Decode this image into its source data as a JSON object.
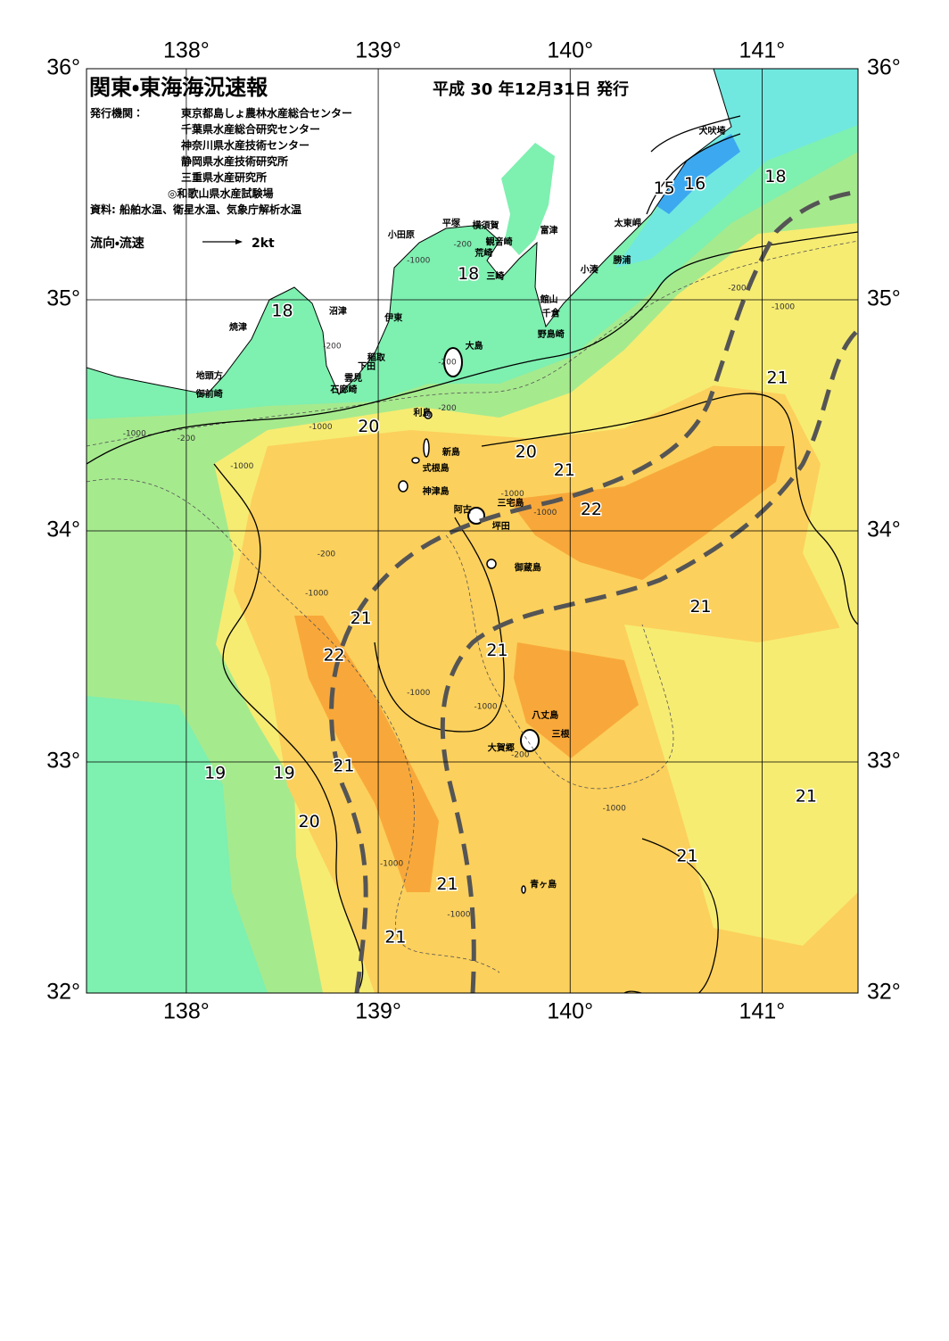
{
  "header": {
    "title": "関東・東海海況速報",
    "date": "平成 30 年12月31日 発行",
    "publisher_label": "発行機関：",
    "publishers": [
      "東京都島しょ農林水産総合センター",
      "千葉県水産総合研究センター",
      "神奈川県水産技術センター",
      "静岡県水産技術研究所",
      "三重県水産研究所",
      "◎和歌山県水産試験場"
    ],
    "source": "資料: 船舶水温、衛星水温、気象庁解析水温",
    "legend_label": "流向・流速",
    "legend_scale": "2kt"
  },
  "map": {
    "lonlim": [
      137.48,
      141.5
    ],
    "latlim": [
      32,
      36
    ],
    "lon_ticks": [
      {
        "value": 138,
        "label": "138°"
      },
      {
        "value": 139,
        "label": "139°"
      },
      {
        "value": 140,
        "label": "140°"
      },
      {
        "value": 141,
        "label": "141°"
      }
    ],
    "lat_ticks": [
      {
        "value": 32,
        "label": "32°"
      },
      {
        "value": 33,
        "label": "33°"
      },
      {
        "value": 34,
        "label": "34°"
      },
      {
        "value": 35,
        "label": "35°"
      },
      {
        "value": 36,
        "label": "36°"
      }
    ],
    "places": [
      {
        "name": "犬吠埼",
        "lon": 140.74,
        "lat": 35.73
      },
      {
        "name": "太東岬",
        "lon": 140.3,
        "lat": 35.33
      },
      {
        "name": "勝浦",
        "lon": 140.27,
        "lat": 35.17
      },
      {
        "name": "小湊",
        "lon": 140.1,
        "lat": 35.13
      },
      {
        "name": "館山",
        "lon": 139.89,
        "lat": 35.0
      },
      {
        "name": "千倉",
        "lon": 139.9,
        "lat": 34.94
      },
      {
        "name": "野島崎",
        "lon": 139.9,
        "lat": 34.85
      },
      {
        "name": "富津",
        "lon": 139.89,
        "lat": 35.3
      },
      {
        "name": "横須賀",
        "lon": 139.56,
        "lat": 35.32
      },
      {
        "name": "観音崎",
        "lon": 139.63,
        "lat": 35.25
      },
      {
        "name": "荒崎",
        "lon": 139.55,
        "lat": 35.2
      },
      {
        "name": "三崎",
        "lon": 139.61,
        "lat": 35.1
      },
      {
        "name": "平塚",
        "lon": 139.38,
        "lat": 35.33
      },
      {
        "name": "小田原",
        "lon": 139.12,
        "lat": 35.28
      },
      {
        "name": "沼津",
        "lon": 138.79,
        "lat": 34.95
      },
      {
        "name": "伊東",
        "lon": 139.08,
        "lat": 34.92
      },
      {
        "name": "焼津",
        "lon": 138.27,
        "lat": 34.88
      },
      {
        "name": "稲取",
        "lon": 138.99,
        "lat": 34.75
      },
      {
        "name": "下田",
        "lon": 138.94,
        "lat": 34.71
      },
      {
        "name": "雲見",
        "lon": 138.87,
        "lat": 34.66
      },
      {
        "name": "石廊崎",
        "lon": 138.82,
        "lat": 34.61
      },
      {
        "name": "地頭方",
        "lon": 138.12,
        "lat": 34.67
      },
      {
        "name": "御前崎",
        "lon": 138.12,
        "lat": 34.59
      },
      {
        "name": "大島",
        "lon": 139.5,
        "lat": 34.8
      },
      {
        "name": "利島",
        "lon": 139.23,
        "lat": 34.51
      },
      {
        "name": "新島",
        "lon": 139.38,
        "lat": 34.34
      },
      {
        "name": "式根島",
        "lon": 139.3,
        "lat": 34.27
      },
      {
        "name": "神津島",
        "lon": 139.3,
        "lat": 34.17
      },
      {
        "name": "阿古",
        "lon": 139.44,
        "lat": 34.09
      },
      {
        "name": "三宅島",
        "lon": 139.69,
        "lat": 34.12
      },
      {
        "name": "坪田",
        "lon": 139.64,
        "lat": 34.02
      },
      {
        "name": "御蔵島",
        "lon": 139.78,
        "lat": 33.84
      },
      {
        "name": "八丈島",
        "lon": 139.87,
        "lat": 33.2
      },
      {
        "name": "三根",
        "lon": 139.95,
        "lat": 33.12
      },
      {
        "name": "大賀郷",
        "lon": 139.64,
        "lat": 33.06
      },
      {
        "name": "青ヶ島",
        "lon": 139.86,
        "lat": 32.47
      }
    ],
    "isotherm_labels": [
      {
        "value": 15,
        "lon": 140.49,
        "lat": 35.48
      },
      {
        "value": 16,
        "lon": 140.65,
        "lat": 35.5
      },
      {
        "value": 18,
        "lon": 141.07,
        "lat": 35.53
      },
      {
        "value": 18,
        "lon": 139.47,
        "lat": 35.11
      },
      {
        "value": 18,
        "lon": 138.5,
        "lat": 34.95
      },
      {
        "value": 20,
        "lon": 138.95,
        "lat": 34.45
      },
      {
        "value": 20,
        "lon": 139.77,
        "lat": 34.34
      },
      {
        "value": 21,
        "lon": 139.97,
        "lat": 34.26
      },
      {
        "value": 22,
        "lon": 140.11,
        "lat": 34.09
      },
      {
        "value": 21,
        "lon": 141.08,
        "lat": 34.66
      },
      {
        "value": 21,
        "lon": 140.68,
        "lat": 33.67
      },
      {
        "value": 21,
        "lon": 138.91,
        "lat": 33.62
      },
      {
        "value": 22,
        "lon": 138.77,
        "lat": 33.46
      },
      {
        "value": 21,
        "lon": 139.62,
        "lat": 33.48
      },
      {
        "value": 21,
        "lon": 138.82,
        "lat": 32.98
      },
      {
        "value": 19,
        "lon": 138.15,
        "lat": 32.95
      },
      {
        "value": 19,
        "lon": 138.51,
        "lat": 32.95
      },
      {
        "value": 20,
        "lon": 138.64,
        "lat": 32.74
      },
      {
        "value": 21,
        "lon": 141.23,
        "lat": 32.85
      },
      {
        "value": 21,
        "lon": 140.61,
        "lat": 32.59
      },
      {
        "value": 21,
        "lon": 139.36,
        "lat": 32.47
      },
      {
        "value": 21,
        "lon": 139.09,
        "lat": 32.24
      }
    ],
    "depth_labels": [
      {
        "value": -200,
        "lon": 139.44,
        "lat": 35.24
      },
      {
        "value": -1000,
        "lon": 139.21,
        "lat": 35.17
      },
      {
        "value": -200,
        "lon": 140.87,
        "lat": 35.05
      },
      {
        "value": -1000,
        "lon": 141.11,
        "lat": 34.97
      },
      {
        "value": -200,
        "lon": 138.76,
        "lat": 34.8
      },
      {
        "value": -200,
        "lon": 139.36,
        "lat": 34.73
      },
      {
        "value": -200,
        "lon": 139.36,
        "lat": 34.53
      },
      {
        "value": -1000,
        "lon": 137.73,
        "lat": 34.42
      },
      {
        "value": -200,
        "lon": 138.0,
        "lat": 34.4
      },
      {
        "value": -1000,
        "lon": 138.7,
        "lat": 34.45
      },
      {
        "value": -1000,
        "lon": 138.29,
        "lat": 34.28
      },
      {
        "value": -200,
        "lon": 138.73,
        "lat": 33.9
      },
      {
        "value": -1000,
        "lon": 138.68,
        "lat": 33.73
      },
      {
        "value": -1000,
        "lon": 139.87,
        "lat": 34.08
      },
      {
        "value": -1000,
        "lon": 139.7,
        "lat": 34.16
      },
      {
        "value": -1000,
        "lon": 139.21,
        "lat": 33.3
      },
      {
        "value": -1000,
        "lon": 139.56,
        "lat": 33.24
      },
      {
        "value": -200,
        "lon": 139.74,
        "lat": 33.03
      },
      {
        "value": -1000,
        "lon": 140.23,
        "lat": 32.8
      },
      {
        "value": -1000,
        "lon": 139.07,
        "lat": 32.56
      },
      {
        "value": -1000,
        "lon": 139.42,
        "lat": 32.34
      }
    ]
  }
}
